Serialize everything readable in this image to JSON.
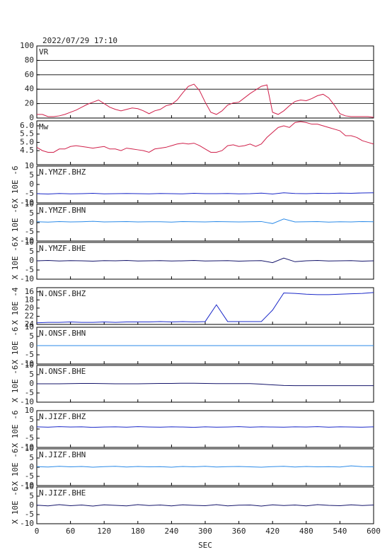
{
  "chart_data": [
    {
      "type": "line",
      "title": "2022/07/29  17:10",
      "ylim": [
        0,
        100
      ],
      "yticks": [
        0,
        20,
        40,
        60,
        80,
        100
      ],
      "grid": true,
      "x": [
        0,
        10,
        20,
        30,
        40,
        50,
        60,
        70,
        80,
        90,
        100,
        110,
        120,
        130,
        140,
        150,
        160,
        170,
        180,
        190,
        200,
        210,
        220,
        230,
        240,
        250,
        260,
        270,
        280,
        290,
        300,
        310,
        320,
        330,
        340,
        350,
        360,
        370,
        380,
        390,
        400,
        410,
        420,
        430,
        440,
        450,
        460,
        470,
        480,
        490,
        500,
        510,
        520,
        530,
        540,
        550,
        560,
        570,
        580,
        590,
        600
      ],
      "series": [
        {
          "name": "VR",
          "color": "#d0204a",
          "values": [
            5,
            5,
            2,
            2,
            3,
            5,
            8,
            11,
            15,
            19,
            22,
            25,
            20,
            15,
            12,
            10,
            12,
            14,
            13,
            10,
            6,
            10,
            12,
            17,
            19,
            25,
            35,
            44,
            47,
            38,
            22,
            8,
            5,
            10,
            18,
            21,
            22,
            28,
            34,
            39,
            44,
            46,
            8,
            5,
            10,
            17,
            23,
            25,
            24,
            27,
            31,
            33,
            28,
            18,
            6,
            3,
            2,
            2,
            2,
            2,
            1
          ]
        }
      ]
    },
    {
      "type": "line",
      "ylim": [
        3.65,
        6.3
      ],
      "yticks": [
        4.5,
        {
          "value": 5,
          "label": "5.0"
        },
        5.5,
        {
          "value": 6,
          "label": "6.0"
        }
      ],
      "grid": false,
      "x": [
        0,
        10,
        20,
        30,
        40,
        50,
        60,
        70,
        80,
        90,
        100,
        110,
        120,
        130,
        140,
        150,
        160,
        170,
        180,
        190,
        200,
        210,
        220,
        230,
        240,
        250,
        260,
        270,
        280,
        290,
        300,
        310,
        320,
        330,
        340,
        350,
        360,
        370,
        380,
        390,
        400,
        410,
        420,
        430,
        440,
        450,
        460,
        470,
        480,
        490,
        500,
        510,
        520,
        530,
        540,
        550,
        560,
        570,
        580,
        590,
        600
      ],
      "series": [
        {
          "name": "Mw",
          "color": "#d0204a",
          "values": [
            4.7,
            4.5,
            4.4,
            4.4,
            4.6,
            4.6,
            4.75,
            4.8,
            4.75,
            4.7,
            4.65,
            4.7,
            4.75,
            4.6,
            4.6,
            4.5,
            4.65,
            4.6,
            4.55,
            4.5,
            4.4,
            4.6,
            4.65,
            4.7,
            4.8,
            4.9,
            4.95,
            4.9,
            4.95,
            4.8,
            4.6,
            4.4,
            4.4,
            4.5,
            4.8,
            4.85,
            4.75,
            4.8,
            4.9,
            4.75,
            4.9,
            5.3,
            5.6,
            5.9,
            6.0,
            5.9,
            6.2,
            6.25,
            6.2,
            6.1,
            6.1,
            6.0,
            5.9,
            5.8,
            5.7,
            5.4,
            5.4,
            5.3,
            5.1,
            5.0,
            4.9
          ]
        }
      ]
    },
    {
      "type": "line",
      "ylabel": "X 10E -6",
      "ylim": [
        -10,
        10
      ],
      "yticks": [
        -10,
        -5,
        0,
        5,
        10
      ],
      "grid": false,
      "x": [
        0,
        20,
        40,
        60,
        80,
        100,
        120,
        140,
        160,
        180,
        200,
        220,
        240,
        260,
        280,
        300,
        320,
        340,
        360,
        380,
        400,
        420,
        440,
        460,
        480,
        500,
        520,
        540,
        560,
        580,
        600
      ],
      "series": [
        {
          "name": "N.YMZF.BHZ",
          "color": "#1a28c8",
          "values": [
            -5,
            -5.2,
            -4.9,
            -5.1,
            -5,
            -4.8,
            -5.1,
            -5,
            -4.9,
            -5,
            -5.1,
            -4.9,
            -5,
            -5.1,
            -4.8,
            -5,
            -5,
            -4.9,
            -5.1,
            -5,
            -4.7,
            -5.2,
            -4.5,
            -4.9,
            -5,
            -4.8,
            -4.9,
            -4.7,
            -4.8,
            -4.6,
            -4.5
          ]
        }
      ]
    },
    {
      "type": "line",
      "ylabel": "X 10E -6",
      "ylim": [
        -10,
        10
      ],
      "yticks": [
        -10,
        -5,
        0,
        5,
        10
      ],
      "grid": false,
      "x": [
        0,
        20,
        40,
        60,
        80,
        100,
        120,
        140,
        160,
        180,
        200,
        220,
        240,
        260,
        280,
        300,
        320,
        340,
        360,
        380,
        400,
        420,
        440,
        460,
        480,
        500,
        520,
        540,
        560,
        580,
        600
      ],
      "series": [
        {
          "name": "N.YMZF.BHN",
          "color": "#2a8ae8",
          "values": [
            0.5,
            0.3,
            0.6,
            0.4,
            0.5,
            0.7,
            0.4,
            0.5,
            0.6,
            0.4,
            0.5,
            0.5,
            0.3,
            0.6,
            0.5,
            0.4,
            0.6,
            0.5,
            0.4,
            0.5,
            0.6,
            -0.5,
            2,
            0.4,
            0.5,
            0.6,
            0.3,
            0.5,
            0.4,
            0.6,
            0.5
          ]
        }
      ]
    },
    {
      "type": "line",
      "ylabel": "X 10E -6",
      "ylim": [
        -10,
        10
      ],
      "yticks": [
        -10,
        -5,
        0,
        5,
        10
      ],
      "grid": false,
      "x": [
        0,
        20,
        40,
        60,
        80,
        100,
        120,
        140,
        160,
        180,
        200,
        220,
        240,
        260,
        280,
        300,
        320,
        340,
        360,
        380,
        400,
        420,
        440,
        460,
        480,
        500,
        520,
        540,
        560,
        580,
        600
      ],
      "series": [
        {
          "name": "N.YMZF.BHE",
          "color": "#14146a",
          "values": [
            0,
            0.2,
            -0.1,
            0.1,
            0,
            -0.2,
            0.1,
            0,
            0.2,
            -0.1,
            0,
            0.1,
            -0.1,
            0,
            0.2,
            -0.1,
            0,
            0.1,
            -0.2,
            0,
            0.1,
            -1,
            1.5,
            -0.5,
            0,
            0.2,
            -0.1,
            0,
            0.1,
            -0.2,
            0
          ]
        }
      ]
    },
    {
      "type": "line",
      "ylabel": "X 10E -4",
      "ylim": [
        24,
        15
      ],
      "yticks": [
        16,
        18,
        20,
        22,
        24
      ],
      "grid": false,
      "x": [
        0,
        20,
        40,
        60,
        80,
        100,
        120,
        140,
        160,
        180,
        200,
        220,
        240,
        260,
        280,
        300,
        320,
        340,
        360,
        380,
        400,
        420,
        440,
        460,
        480,
        500,
        520,
        540,
        560,
        580,
        600
      ],
      "series": [
        {
          "name": "N.ONSF.BHZ",
          "color": "#1a28c8",
          "values": [
            23.6,
            23.5,
            23.5,
            23.4,
            23.5,
            23.5,
            23.4,
            23.5,
            23.4,
            23.4,
            23.4,
            23.3,
            23.4,
            23.3,
            23.4,
            23.3,
            19.2,
            23.3,
            23.3,
            23.3,
            23.3,
            20.5,
            16.3,
            16.4,
            16.6,
            16.7,
            16.7,
            16.6,
            16.5,
            16.4,
            16.2
          ]
        }
      ]
    },
    {
      "type": "line",
      "ylabel": "X 10E -6",
      "ylim": [
        -10,
        10
      ],
      "yticks": [
        -10,
        -5,
        0,
        5,
        10
      ],
      "grid": false,
      "x": [
        0,
        20,
        40,
        60,
        80,
        100,
        120,
        140,
        160,
        180,
        200,
        220,
        240,
        260,
        280,
        300,
        320,
        340,
        360,
        380,
        400,
        420,
        440,
        460,
        480,
        500,
        520,
        540,
        560,
        580,
        600
      ],
      "series": [
        {
          "name": "N.ONSF.BHN",
          "color": "#2a8ae8",
          "values": [
            0,
            0,
            0,
            0,
            0,
            0,
            0,
            0,
            0,
            0,
            0,
            0,
            0,
            0,
            0,
            0,
            0,
            0,
            0,
            0,
            0,
            0,
            0,
            0,
            0,
            0,
            0,
            0,
            0,
            0,
            0
          ]
        }
      ]
    },
    {
      "type": "line",
      "ylabel": "X 10E -6",
      "ylim": [
        -10,
        10
      ],
      "yticks": [
        -10,
        -5,
        0,
        5,
        10
      ],
      "grid": false,
      "x": [
        0,
        20,
        40,
        60,
        80,
        100,
        120,
        140,
        160,
        180,
        200,
        220,
        240,
        260,
        280,
        300,
        320,
        340,
        360,
        380,
        400,
        420,
        440,
        460,
        480,
        500,
        520,
        540,
        560,
        580,
        600
      ],
      "series": [
        {
          "name": "N.ONSF.BHE",
          "color": "#14146a",
          "values": [
            0,
            0,
            0,
            0.1,
            0.2,
            0.2,
            0.1,
            0,
            0,
            0,
            0.1,
            0.2,
            0.2,
            0.3,
            0.3,
            0.2,
            0.1,
            0.1,
            0.1,
            0.1,
            -0.2,
            -0.6,
            -0.9,
            -1,
            -1,
            -1,
            -1,
            -1,
            -1,
            -1,
            -1
          ]
        }
      ]
    },
    {
      "type": "line",
      "ylabel": "X 10E -6",
      "ylim": [
        -10,
        10
      ],
      "yticks": [
        -10,
        -5,
        0,
        5,
        10
      ],
      "grid": false,
      "x": [
        0,
        20,
        40,
        60,
        80,
        100,
        120,
        140,
        160,
        180,
        200,
        220,
        240,
        260,
        280,
        300,
        320,
        340,
        360,
        380,
        400,
        420,
        440,
        460,
        480,
        500,
        520,
        540,
        560,
        580,
        600
      ],
      "series": [
        {
          "name": "N.JIZF.BHZ",
          "color": "#1a28c8",
          "values": [
            1.2,
            1,
            1.3,
            1.1,
            1.2,
            0.9,
            1.1,
            1.2,
            1,
            1.3,
            1.1,
            1,
            1.2,
            1.1,
            0.9,
            1.2,
            1,
            1.1,
            1.3,
            1,
            1.2,
            1.1,
            1,
            1.2,
            1.1,
            1.3,
            1,
            1.2,
            1.1,
            1,
            1.2
          ]
        }
      ]
    },
    {
      "type": "line",
      "ylabel": "X 10E -6",
      "ylim": [
        -10,
        10
      ],
      "yticks": [
        -10,
        -5,
        0,
        5,
        10
      ],
      "grid": false,
      "x": [
        0,
        20,
        40,
        60,
        80,
        100,
        120,
        140,
        160,
        180,
        200,
        220,
        240,
        260,
        280,
        300,
        320,
        340,
        360,
        380,
        400,
        420,
        440,
        460,
        480,
        500,
        520,
        540,
        560,
        580,
        600
      ],
      "series": [
        {
          "name": "N.JIZF.BHN",
          "color": "#2a8ae8",
          "values": [
            0.3,
            0.1,
            0.5,
            0.2,
            0.4,
            0,
            0.3,
            0.5,
            0.1,
            0.4,
            0.2,
            0.3,
            0,
            0.4,
            0.2,
            0.5,
            0.1,
            0.3,
            0.4,
            0.2,
            0,
            0.3,
            0.5,
            0.1,
            0.4,
            0.2,
            0.3,
            0.1,
            0.7,
            0.3,
            0.2
          ]
        }
      ]
    },
    {
      "type": "line",
      "ylabel": "X 10E -6",
      "ylim": [
        -10,
        10
      ],
      "yticks": [
        -10,
        -5,
        0,
        5,
        10
      ],
      "grid": false,
      "xlabel": "SEC",
      "xlim": [
        0,
        600
      ],
      "xticks": [
        0,
        60,
        120,
        180,
        240,
        300,
        360,
        420,
        480,
        540,
        600
      ],
      "x": [
        0,
        20,
        40,
        60,
        80,
        100,
        120,
        140,
        160,
        180,
        200,
        220,
        240,
        260,
        280,
        300,
        320,
        340,
        360,
        380,
        400,
        420,
        440,
        460,
        480,
        500,
        520,
        540,
        560,
        580,
        600
      ],
      "series": [
        {
          "name": "N.JIZF.BHE",
          "color": "#14146a",
          "values": [
            0.1,
            -0.3,
            0.4,
            -0.2,
            0.2,
            -0.4,
            0.3,
            0,
            -0.3,
            0.4,
            -0.1,
            0.2,
            -0.3,
            0.3,
            0,
            -0.2,
            0.4,
            -0.3,
            0.1,
            0.2,
            -0.4,
            0.3,
            -0.1,
            0.2,
            -0.3,
            0.4,
            0,
            -0.2,
            0.3,
            -0.1,
            0.2
          ]
        }
      ]
    }
  ]
}
